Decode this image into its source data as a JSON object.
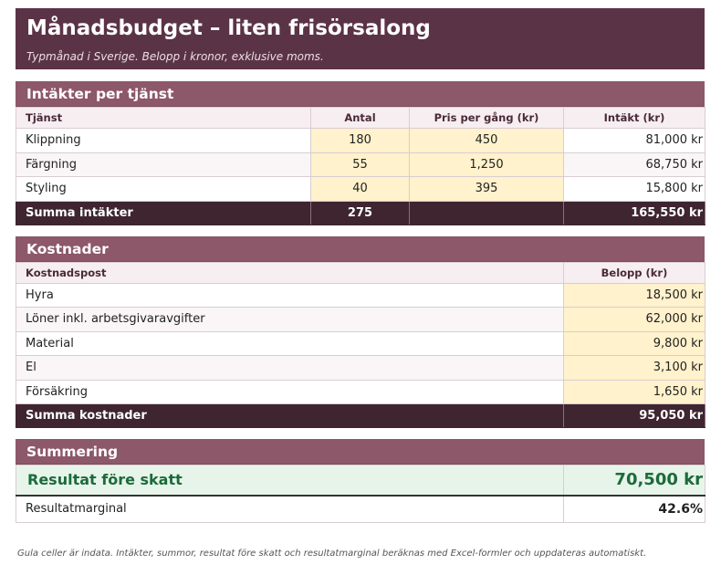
{
  "title": "Månadsbudget – liten frisörsalong",
  "subtitle": "Typmånad i Sverige. Belopp i kronor, exklusive moms.",
  "income": {
    "header": "Intäkter per tjänst",
    "columns": [
      "Tjänst",
      "Antal",
      "Pris per gång (kr)",
      "Intäkt (kr)"
    ],
    "rows": [
      {
        "service": "Klippning",
        "count": "180",
        "price": "450",
        "revenue": "81,000 kr"
      },
      {
        "service": "Färgning",
        "count": "55",
        "price": "1,250",
        "revenue": "68,750 kr"
      },
      {
        "service": "Styling",
        "count": "40",
        "price": "395",
        "revenue": "15,800 kr"
      }
    ],
    "total": {
      "label": "Summa intäkter",
      "count": "275",
      "revenue": "165,550 kr"
    }
  },
  "costs": {
    "header": "Kostnader",
    "columns": [
      "Kostnadspost",
      "Belopp (kr)"
    ],
    "rows": [
      {
        "item": "Hyra",
        "amount": "18,500 kr"
      },
      {
        "item": "Löner inkl. arbetsgivaravgifter",
        "amount": "62,000 kr"
      },
      {
        "item": "Material",
        "amount": "9,800 kr"
      },
      {
        "item": "El",
        "amount": "3,100 kr"
      },
      {
        "item": "Försäkring",
        "amount": "1,650 kr"
      }
    ],
    "total": {
      "label": "Summa kostnader",
      "amount": "95,050 kr"
    }
  },
  "summary": {
    "header": "Summering",
    "result_label": "Resultat före skatt",
    "result_value": "70,500 kr",
    "margin_label": "Resultatmarginal",
    "margin_value": "42.6%"
  },
  "footnote": "Gula celler är indata. Intäkter, summor, resultat före skatt och resultatmarginal beräknas med Excel-formler och uppdateras automatiskt.",
  "colors": {
    "title_bg": "#5b3346",
    "section_bg": "#8d5869",
    "total_bg": "#3e2530",
    "input_bg": "#fff2cc",
    "result_bg": "#e7f4ea",
    "result_text": "#1b6b3a"
  }
}
